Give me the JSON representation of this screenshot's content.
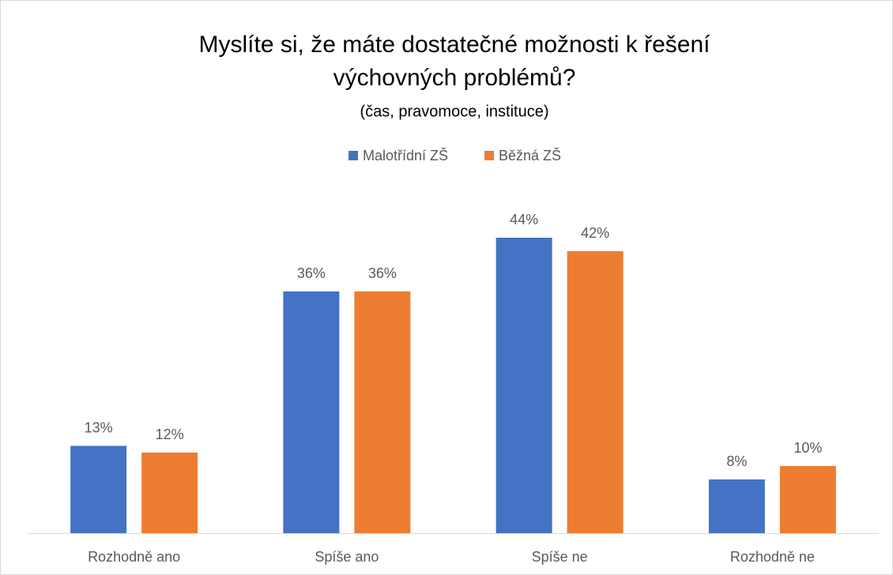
{
  "chart_data": {
    "type": "bar",
    "title": [
      "Myslíte si, že máte dostatečné možnosti k řešení",
      "výchovných problémů?"
    ],
    "subtitle": "(čas, pravomoce, instituce)",
    "categories": [
      "Rozhodně ano",
      "Spíše ano",
      "Spíše ne",
      "Rozhodně ne"
    ],
    "series": [
      {
        "name": "Malotřídní ZŠ",
        "color": "#4472c4",
        "values": [
          13,
          36,
          44,
          8
        ],
        "value_labels": [
          "13%",
          "36%",
          "44%",
          "8%"
        ]
      },
      {
        "name": "Běžná ZŠ",
        "color": "#ed7d31",
        "values": [
          12,
          36,
          42,
          10
        ],
        "value_labels": [
          "12%",
          "36%",
          "42%",
          "10%"
        ]
      }
    ],
    "legend": "top"
  }
}
